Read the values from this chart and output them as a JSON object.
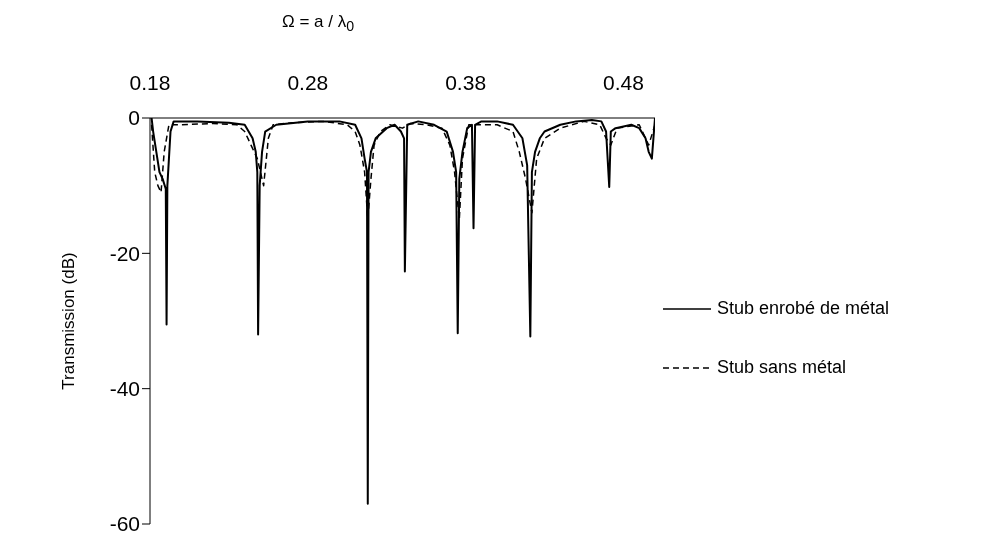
{
  "chart_data": {
    "type": "line",
    "xlabel": "Ω = a / λ$_{0}$",
    "ylabel": "Transmission (dB)",
    "xlim": [
      0.18,
      0.5
    ],
    "xticks": [
      0.18,
      0.28,
      0.38,
      0.48
    ],
    "ylim": [
      -60,
      0
    ],
    "yticks": [
      0,
      -20,
      -40,
      -60
    ],
    "legend": "right",
    "marker": "none",
    "series": [
      {
        "name": "Stub enrobé de métal",
        "color": "#000000",
        "line_style": "solid",
        "x": [
          0.181,
          0.182,
          0.184,
          0.186,
          0.188,
          0.19,
          0.1905,
          0.191,
          0.193,
          0.195,
          0.21,
          0.23,
          0.24,
          0.245,
          0.247,
          0.248,
          0.2485,
          0.2495,
          0.251,
          0.253,
          0.26,
          0.28,
          0.3,
          0.31,
          0.314,
          0.316,
          0.3175,
          0.318,
          0.3185,
          0.32,
          0.323,
          0.33,
          0.335,
          0.339,
          0.341,
          0.3415,
          0.343,
          0.35,
          0.36,
          0.368,
          0.372,
          0.374,
          0.375,
          0.376,
          0.378,
          0.381,
          0.384,
          0.385,
          0.386,
          0.39,
          0.4,
          0.41,
          0.416,
          0.419,
          0.421,
          0.422,
          0.424,
          0.427,
          0.43,
          0.44,
          0.45,
          0.46,
          0.466,
          0.469,
          0.471,
          0.472,
          0.475,
          0.485,
          0.49,
          0.494,
          0.496,
          0.498,
          0.499,
          0.5
        ],
        "values": [
          0,
          -2,
          -5,
          -8,
          -9,
          -10.5,
          -30.5,
          -10,
          -2,
          -0.5,
          -0.5,
          -0.7,
          -1,
          -3,
          -5,
          -8,
          -32,
          -10,
          -5,
          -2,
          -1,
          -0.5,
          -0.5,
          -1,
          -3,
          -6,
          -8,
          -57,
          -8,
          -5,
          -3,
          -1.5,
          -1,
          -2,
          -3,
          -22.7,
          -1,
          -0.5,
          -1,
          -2,
          -5,
          -8,
          -31.8,
          -9,
          -5,
          -1.5,
          -1,
          -16.3,
          -1,
          -0.5,
          -0.5,
          -1,
          -3,
          -7,
          -32.3,
          -8,
          -5,
          -3,
          -2,
          -1,
          -0.5,
          -0.3,
          -0.5,
          -2,
          -10.2,
          -2,
          -1.5,
          -1,
          -1.5,
          -3,
          -5,
          -6,
          -3,
          0
        ]
      },
      {
        "name": "Stub sans métal",
        "color": "#000000",
        "line_style": "dashed",
        "x": [
          0.181,
          0.183,
          0.185,
          0.187,
          0.189,
          0.192,
          0.2,
          0.22,
          0.235,
          0.24,
          0.244,
          0.248,
          0.252,
          0.255,
          0.258,
          0.27,
          0.29,
          0.305,
          0.31,
          0.313,
          0.316,
          0.318,
          0.32,
          0.322,
          0.326,
          0.332,
          0.34,
          0.345,
          0.355,
          0.365,
          0.37,
          0.373,
          0.376,
          0.378,
          0.382,
          0.39,
          0.4,
          0.41,
          0.414,
          0.418,
          0.422,
          0.425,
          0.43,
          0.44,
          0.455,
          0.465,
          0.469,
          0.472,
          0.476,
          0.49,
          0.496,
          0.5
        ],
        "values": [
          -1,
          -8,
          -10,
          -11,
          -5,
          -1,
          -1,
          -0.8,
          -1,
          -2,
          -4,
          -6,
          -10,
          -3,
          -1,
          -0.7,
          -0.5,
          -1,
          -2,
          -4,
          -8,
          -15,
          -9,
          -4,
          -2,
          -1,
          -1.5,
          -0.8,
          -1,
          -1.5,
          -4,
          -8,
          -15,
          -6,
          -1,
          -1,
          -1,
          -2,
          -5,
          -9,
          -14,
          -6,
          -3,
          -1.5,
          -0.5,
          -1,
          -3,
          -4,
          -1.5,
          -1,
          -4,
          -1
        ]
      }
    ]
  }
}
